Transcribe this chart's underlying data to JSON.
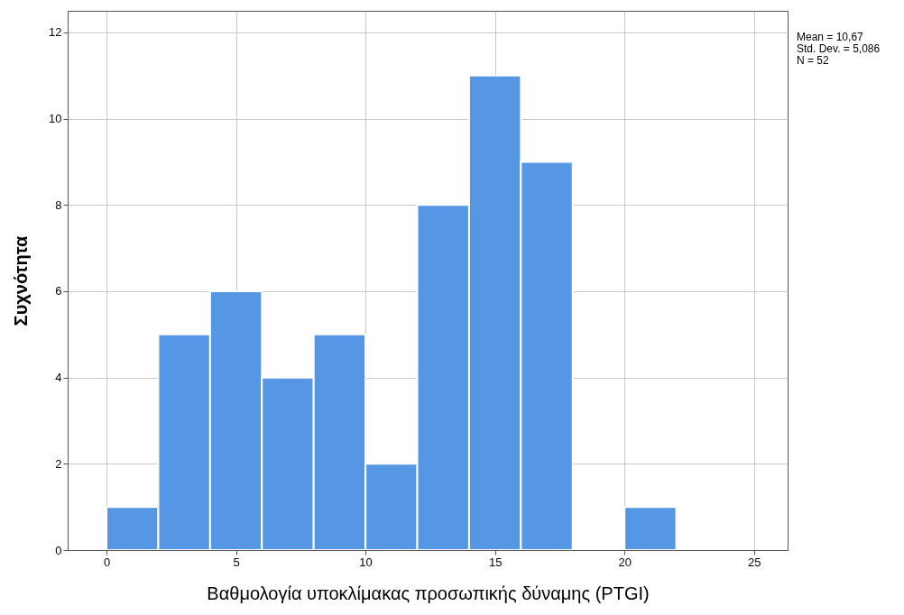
{
  "chart_data": {
    "type": "histogram",
    "xlabel": "Βαθμολογία υποκλίμακας προσωπικής δύναμης (PTGI)",
    "ylabel": "Συχνότητα",
    "bins": [
      0,
      2,
      4,
      6,
      8,
      10,
      12,
      14,
      16,
      18,
      20,
      22
    ],
    "values": [
      1,
      5,
      6,
      4,
      5,
      2,
      8,
      11,
      9,
      0,
      1
    ],
    "color": "#5596e5",
    "xlim": [
      -1.5,
      26.3
    ],
    "xticks": [
      0,
      5,
      10,
      15,
      20,
      25
    ],
    "ylim": [
      0,
      12.5
    ],
    "yticks": [
      0,
      2,
      4,
      6,
      8,
      10,
      12
    ],
    "grid": true,
    "annotations": [
      "Mean = 10,67",
      "Std. Dev. = 5,086",
      "N = 52"
    ]
  }
}
